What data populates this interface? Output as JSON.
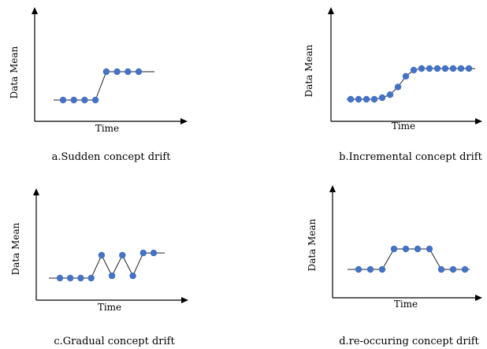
{
  "panels": [
    {
      "id": "a",
      "ylabel": "Data Mean",
      "xlabel": "Time",
      "caption": "a.Sudden concept drift",
      "chart_data": {
        "type": "line",
        "x": [
          0,
          1,
          2,
          3,
          4,
          5,
          6,
          7
        ],
        "y": [
          0,
          0,
          0,
          0,
          1,
          1,
          1,
          1
        ]
      }
    },
    {
      "id": "b",
      "ylabel": "Data Mean",
      "xlabel": "Time",
      "caption": "b.Incremental concept drift",
      "chart_data": {
        "type": "line",
        "x": [
          0,
          1,
          2,
          3,
          4,
          5,
          6,
          7,
          8,
          9,
          10,
          11,
          12,
          13,
          14,
          15
        ],
        "y": [
          0,
          0,
          0,
          0,
          0.05,
          0.15,
          0.4,
          0.75,
          0.95,
          1,
          1,
          1,
          1,
          1,
          1,
          1
        ]
      }
    },
    {
      "id": "c",
      "ylabel": "Data Mean",
      "xlabel": "Time",
      "caption": "c.Gradual concept drift",
      "chart_data": {
        "type": "line",
        "x": [
          0,
          1,
          2,
          3,
          4,
          5,
          6,
          7,
          8,
          9
        ],
        "y": [
          0,
          0,
          0,
          0,
          1,
          0.1,
          1,
          0.1,
          1.1,
          1.1
        ]
      }
    },
    {
      "id": "d",
      "ylabel": "Data Mean",
      "xlabel": "Time",
      "caption": "d.re-occuring concept drift",
      "chart_data": {
        "type": "line",
        "x": [
          0,
          1,
          2,
          3,
          4,
          5,
          6,
          7,
          8,
          9
        ],
        "y": [
          0,
          0,
          0,
          1,
          1,
          1,
          1,
          0,
          0,
          0
        ]
      }
    }
  ],
  "colors": {
    "marker": "#4472c4",
    "line": "#222222",
    "axis": "#000000"
  }
}
